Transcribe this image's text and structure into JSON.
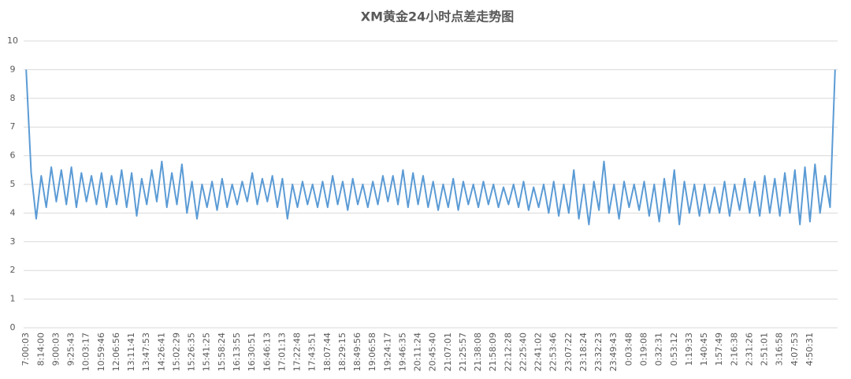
{
  "chart_data": {
    "type": "line",
    "title": "XM黄金24小时点差走势图",
    "categories": [
      "7:00:03",
      null,
      null,
      "8:14:00",
      null,
      null,
      "9:00:03",
      null,
      null,
      "9:25:43",
      null,
      null,
      "10:03:17",
      null,
      null,
      "10:59:46",
      null,
      null,
      "12:06:56",
      null,
      null,
      "13:11:41",
      null,
      null,
      "13:47:53",
      null,
      null,
      "14:26:41",
      null,
      null,
      "15:02:29",
      null,
      null,
      "15:26:35",
      null,
      null,
      "15:41:25",
      null,
      null,
      "15:58:24",
      null,
      null,
      "16:13:55",
      null,
      null,
      "16:30:51",
      null,
      null,
      "16:46:13",
      null,
      null,
      "17:01:13",
      null,
      null,
      "17:22:48",
      null,
      null,
      "17:43:51",
      null,
      null,
      "18:07:44",
      null,
      null,
      "18:29:15",
      null,
      null,
      "18:49:56",
      null,
      null,
      "19:06:58",
      null,
      null,
      "19:24:17",
      null,
      null,
      "19:46:35",
      null,
      null,
      "20:11:24",
      null,
      null,
      "20:45:40",
      null,
      null,
      "21:07:01",
      null,
      null,
      "21:25:57",
      null,
      null,
      "21:38:08",
      null,
      null,
      "21:58:09",
      null,
      null,
      "22:12:28",
      null,
      null,
      "22:25:40",
      null,
      null,
      "22:41:02",
      null,
      null,
      "22:53:46",
      null,
      null,
      "23:07:22",
      null,
      null,
      "23:18:24",
      null,
      null,
      "23:32:23",
      null,
      null,
      "23:49:43",
      null,
      null,
      "0:03:48",
      null,
      null,
      "0:19:08",
      null,
      null,
      "0:32:31",
      null,
      null,
      "0:53:12",
      null,
      null,
      "1:19:33",
      null,
      null,
      "1:40:45",
      null,
      null,
      "1:57:49",
      null,
      null,
      "2:16:38",
      null,
      null,
      "2:31:26",
      null,
      null,
      "2:51:01",
      null,
      null,
      "3:16:58",
      null,
      null,
      "4:07:53",
      null,
      null,
      "4:50:31",
      null,
      null,
      null,
      null,
      null
    ],
    "values": [
      9,
      5.4,
      3.8,
      5.3,
      4.2,
      5.6,
      4.4,
      5.5,
      4.3,
      5.6,
      4.2,
      5.4,
      4.4,
      5.3,
      4.3,
      5.4,
      4.2,
      5.3,
      4.3,
      5.5,
      4.2,
      5.4,
      3.9,
      5.2,
      4.3,
      5.5,
      4.4,
      5.8,
      4.2,
      5.4,
      4.3,
      5.7,
      4.0,
      5.1,
      3.8,
      5.0,
      4.2,
      5.1,
      4.1,
      5.2,
      4.2,
      5.0,
      4.3,
      5.1,
      4.4,
      5.4,
      4.3,
      5.2,
      4.4,
      5.3,
      4.2,
      5.2,
      3.8,
      5.0,
      4.2,
      5.1,
      4.3,
      5.0,
      4.2,
      5.1,
      4.2,
      5.3,
      4.3,
      5.1,
      4.1,
      5.2,
      4.3,
      5.0,
      4.2,
      5.1,
      4.3,
      5.3,
      4.4,
      5.3,
      4.3,
      5.5,
      4.2,
      5.4,
      4.3,
      5.3,
      4.2,
      5.1,
      4.1,
      5.0,
      4.2,
      5.2,
      4.1,
      5.1,
      4.3,
      5.0,
      4.2,
      5.1,
      4.3,
      5.0,
      4.2,
      4.9,
      4.3,
      5.0,
      4.2,
      5.1,
      4.1,
      4.9,
      4.2,
      5.0,
      4.0,
      5.1,
      3.9,
      5.0,
      4.0,
      5.5,
      3.8,
      5.0,
      3.6,
      5.1,
      4.1,
      5.8,
      4.0,
      5.0,
      3.8,
      5.1,
      4.2,
      5.0,
      4.1,
      5.1,
      3.9,
      5.0,
      3.7,
      5.2,
      4.0,
      5.5,
      3.6,
      5.1,
      4.0,
      5.0,
      3.9,
      5.0,
      4.0,
      4.9,
      4.0,
      5.1,
      3.9,
      5.0,
      4.1,
      5.2,
      4.0,
      5.1,
      3.9,
      5.3,
      4.0,
      5.2,
      3.9,
      5.4,
      4.0,
      5.5,
      3.6,
      5.6,
      3.7,
      5.7,
      4.0,
      5.3,
      4.2,
      9
    ],
    "color": "#5b9bd5",
    "ylim": [
      0,
      10
    ],
    "yticks": [
      0,
      1,
      2,
      3,
      4,
      5,
      6,
      7,
      8,
      9,
      10
    ],
    "grid": true
  }
}
